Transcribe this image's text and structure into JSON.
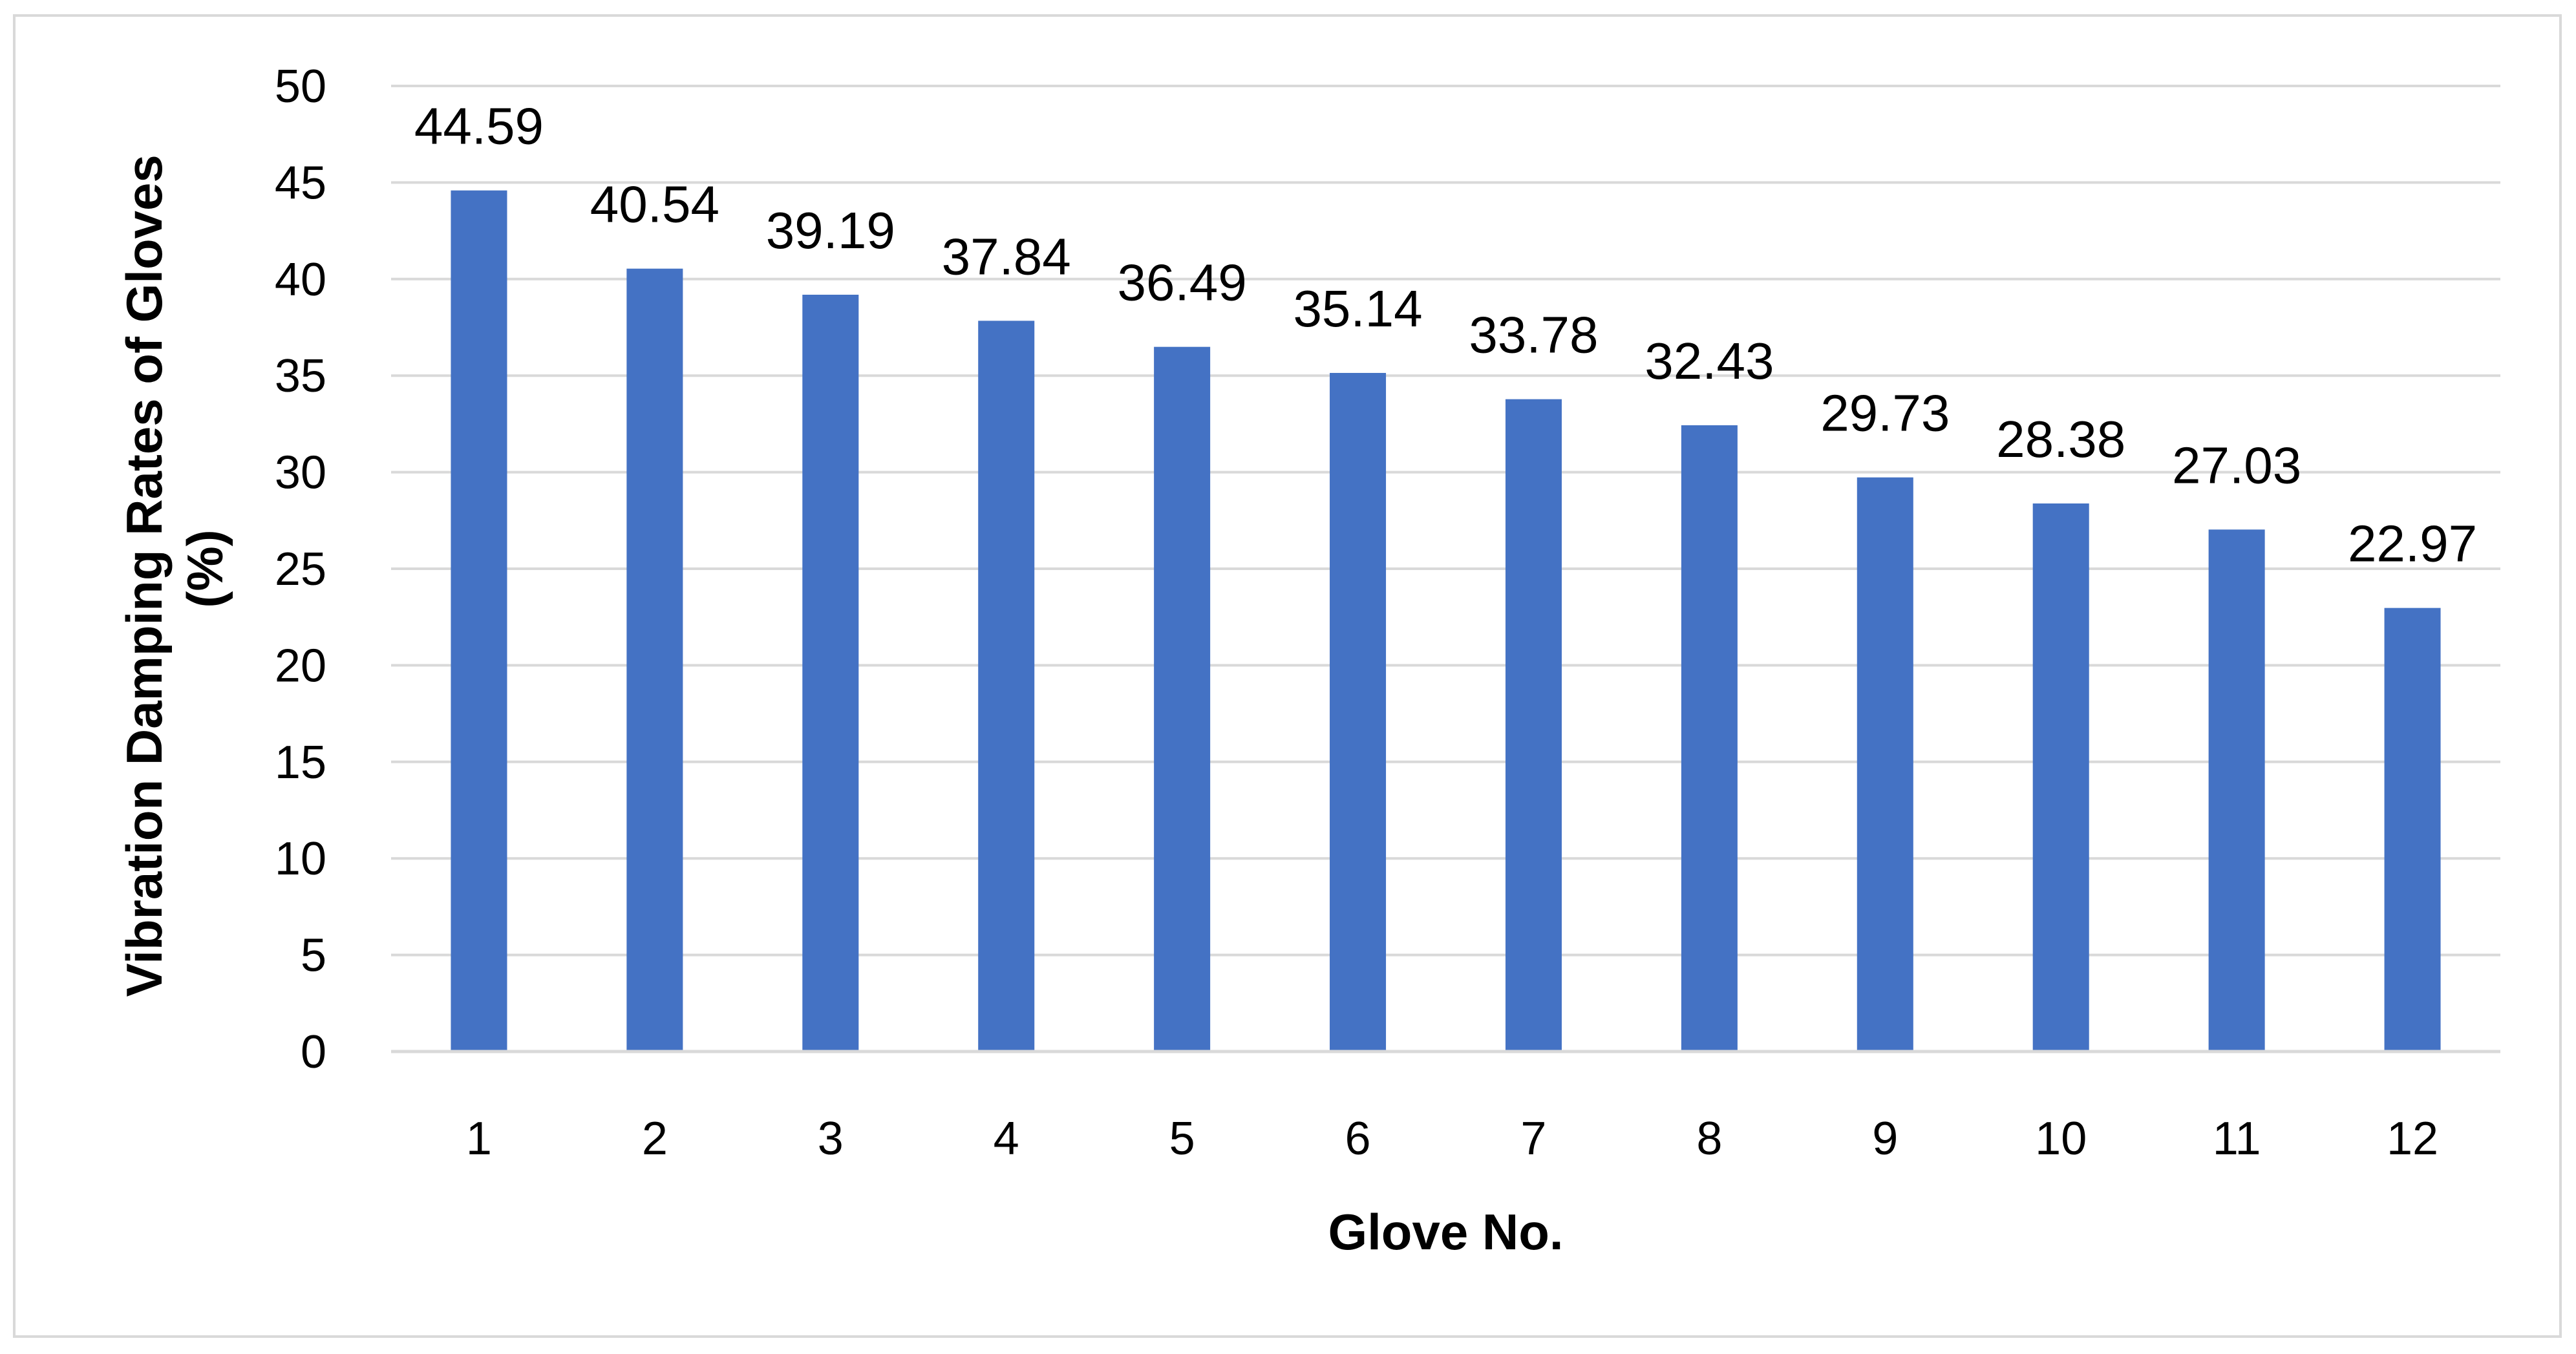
{
  "chart_data": {
    "type": "bar",
    "title": "",
    "xlabel": "Glove No.",
    "ylabel_lines": [
      "Vibration Damping Rates of Gloves",
      "(%)"
    ],
    "categories": [
      "1",
      "2",
      "3",
      "4",
      "5",
      "6",
      "7",
      "8",
      "9",
      "10",
      "11",
      "12"
    ],
    "values": [
      44.59,
      40.54,
      39.19,
      37.84,
      36.49,
      35.14,
      33.78,
      32.43,
      29.73,
      28.38,
      27.03,
      22.97
    ],
    "data_labels": [
      "44.59",
      "40.54",
      "39.19",
      "37.84",
      "36.49",
      "35.14",
      "33.78",
      "32.43",
      "29.73",
      "28.38",
      "27.03",
      "22.97"
    ],
    "ylim": [
      0,
      50
    ],
    "yticks": [
      0,
      5,
      10,
      15,
      20,
      25,
      30,
      35,
      40,
      45,
      50
    ],
    "grid": true,
    "legend": "none",
    "colors": {
      "bar": "#4472C4",
      "grid": "#d9d9d9",
      "frame": "#d9d9d9"
    }
  }
}
